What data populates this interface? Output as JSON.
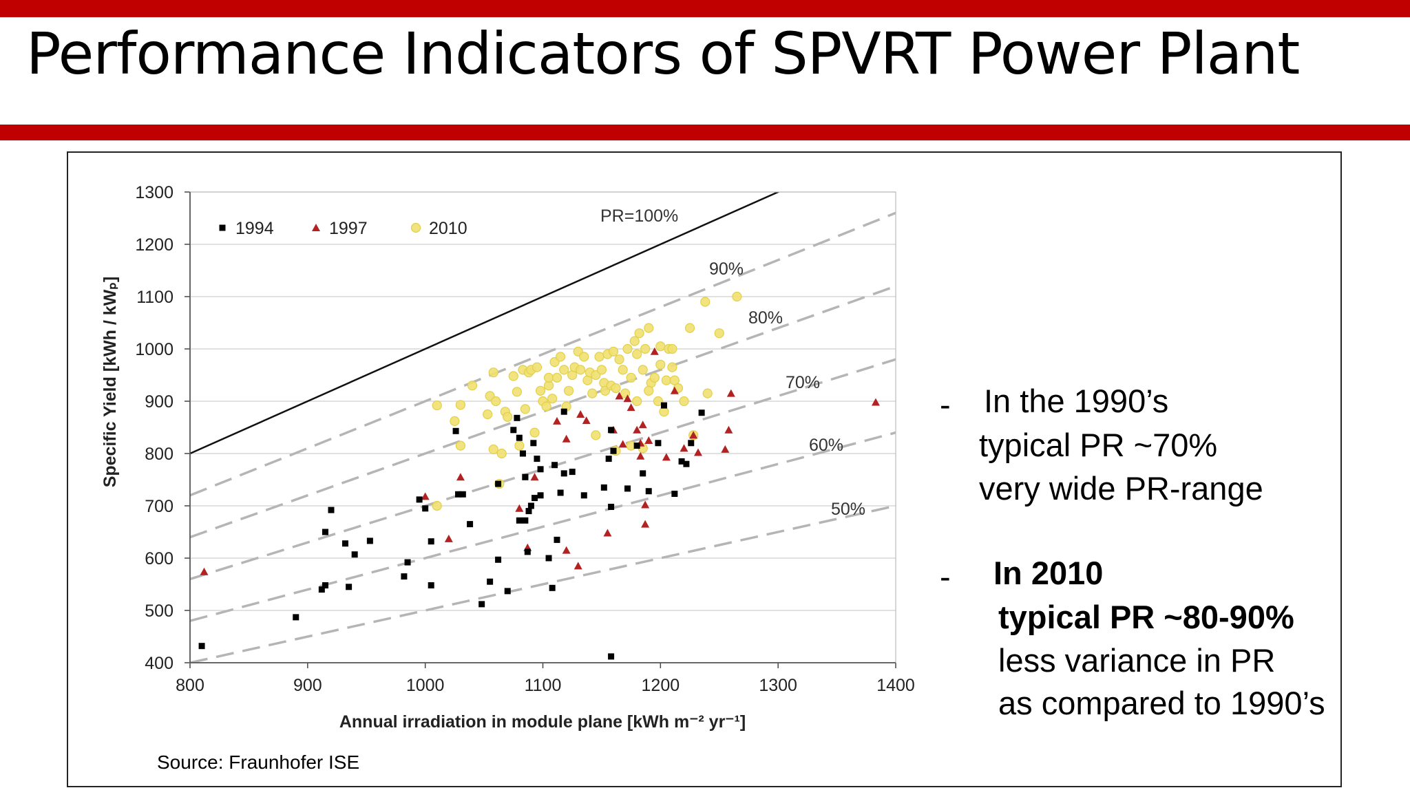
{
  "header": {
    "title": "Performance Indicators of SPVRT Power Plant"
  },
  "source": "Source: Fraunhofer ISE",
  "bullets": {
    "b1": {
      "dash": "-",
      "line1": "In the 1990’s",
      "line2": "typical PR ~70%",
      "line3": "very wide PR-range"
    },
    "b2": {
      "dash": "-",
      "line1": "In 2010",
      "line2": "typical PR ~80-90%",
      "line3": "less variance in PR",
      "line4": "as compared to 1990’s"
    }
  },
  "chart_data": {
    "type": "scatter",
    "xlabel": "Annual irradiation  in module plane [kWh m⁻² yr⁻¹]",
    "ylabel": "Specific Yield  [kWh / kWₚ]",
    "xlim": [
      800,
      1400
    ],
    "ylim": [
      400,
      1300
    ],
    "xticks": [
      "800",
      "900",
      "1000",
      "1100",
      "1200",
      "1300",
      "1400"
    ],
    "yticks": [
      "400",
      "500",
      "600",
      "700",
      "800",
      "900",
      "1000",
      "1100",
      "1200",
      "1300"
    ],
    "grid": "horizontal",
    "legend_position": "top-left",
    "reference_lines": [
      {
        "label": "PR=100%",
        "pr": 1.0,
        "style": "solid"
      },
      {
        "label": "90%",
        "pr": 0.9,
        "style": "dashed"
      },
      {
        "label": "80%",
        "pr": 0.8,
        "style": "dashed"
      },
      {
        "label": "70%",
        "pr": 0.7,
        "style": "dashed"
      },
      {
        "label": "60%",
        "pr": 0.6,
        "style": "dashed"
      },
      {
        "label": "50%",
        "pr": 0.5,
        "style": "dashed"
      }
    ],
    "series": [
      {
        "name": "1994",
        "marker": "square",
        "color": "#000000",
        "points": [
          [
            810,
            432
          ],
          [
            890,
            487
          ],
          [
            912,
            540
          ],
          [
            915,
            548
          ],
          [
            915,
            650
          ],
          [
            920,
            692
          ],
          [
            932,
            628
          ],
          [
            940,
            607
          ],
          [
            953,
            633
          ],
          [
            935,
            545
          ],
          [
            982,
            565
          ],
          [
            985,
            592
          ],
          [
            995,
            712
          ],
          [
            1000,
            695
          ],
          [
            1005,
            632
          ],
          [
            1005,
            548
          ],
          [
            1026,
            843
          ],
          [
            1028,
            722
          ],
          [
            1032,
            722
          ],
          [
            1038,
            665
          ],
          [
            1048,
            512
          ],
          [
            1055,
            555
          ],
          [
            1062,
            742
          ],
          [
            1070,
            537
          ],
          [
            1075,
            845
          ],
          [
            1078,
            868
          ],
          [
            1080,
            830
          ],
          [
            1083,
            800
          ],
          [
            1085,
            755
          ],
          [
            1080,
            672
          ],
          [
            1085,
            672
          ],
          [
            1087,
            612
          ],
          [
            1090,
            700
          ],
          [
            1092,
            820
          ],
          [
            1093,
            715
          ],
          [
            1095,
            790
          ],
          [
            1098,
            770
          ],
          [
            1098,
            720
          ],
          [
            1105,
            600
          ],
          [
            1108,
            543
          ],
          [
            1110,
            778
          ],
          [
            1112,
            635
          ],
          [
            1115,
            725
          ],
          [
            1118,
            880
          ],
          [
            1118,
            762
          ],
          [
            1125,
            765
          ],
          [
            1135,
            720
          ],
          [
            1152,
            735
          ],
          [
            1156,
            790
          ],
          [
            1158,
            845
          ],
          [
            1158,
            698
          ],
          [
            1158,
            412
          ],
          [
            1160,
            805
          ],
          [
            1172,
            733
          ],
          [
            1180,
            815
          ],
          [
            1190,
            728
          ],
          [
            1198,
            820
          ],
          [
            1203,
            892
          ],
          [
            1218,
            785
          ],
          [
            1222,
            780
          ],
          [
            1226,
            820
          ],
          [
            1235,
            878
          ],
          [
            1212,
            723
          ],
          [
            1185,
            762
          ],
          [
            1062,
            597
          ],
          [
            1088,
            690
          ],
          [
            1085,
            755
          ]
        ]
      },
      {
        "name": "1997",
        "marker": "triangle",
        "color": "#b22222",
        "points": [
          [
            812,
            574
          ],
          [
            1000,
            718
          ],
          [
            1020,
            637
          ],
          [
            1030,
            755
          ],
          [
            1080,
            695
          ],
          [
            1087,
            620
          ],
          [
            1093,
            755
          ],
          [
            1112,
            862
          ],
          [
            1120,
            828
          ],
          [
            1120,
            615
          ],
          [
            1130,
            585
          ],
          [
            1132,
            875
          ],
          [
            1137,
            863
          ],
          [
            1155,
            648
          ],
          [
            1160,
            845
          ],
          [
            1165,
            910
          ],
          [
            1172,
            905
          ],
          [
            1175,
            888
          ],
          [
            1180,
            845
          ],
          [
            1183,
            820
          ],
          [
            1183,
            795
          ],
          [
            1185,
            855
          ],
          [
            1187,
            702
          ],
          [
            1187,
            665
          ],
          [
            1190,
            825
          ],
          [
            1195,
            995
          ],
          [
            1205,
            793
          ],
          [
            1212,
            920
          ],
          [
            1220,
            810
          ],
          [
            1228,
            835
          ],
          [
            1232,
            802
          ],
          [
            1255,
            808
          ],
          [
            1258,
            845
          ],
          [
            1260,
            915
          ],
          [
            1383,
            898
          ],
          [
            1168,
            818
          ]
        ]
      },
      {
        "name": "2010",
        "marker": "circle",
        "color": "#f0e070",
        "points": [
          [
            1010,
            892
          ],
          [
            1010,
            700
          ],
          [
            1025,
            862
          ],
          [
            1030,
            893
          ],
          [
            1030,
            815
          ],
          [
            1040,
            930
          ],
          [
            1053,
            875
          ],
          [
            1055,
            910
          ],
          [
            1058,
            955
          ],
          [
            1058,
            808
          ],
          [
            1060,
            900
          ],
          [
            1063,
            742
          ],
          [
            1065,
            800
          ],
          [
            1068,
            880
          ],
          [
            1070,
            870
          ],
          [
            1075,
            948
          ],
          [
            1078,
            918
          ],
          [
            1080,
            815
          ],
          [
            1083,
            960
          ],
          [
            1085,
            885
          ],
          [
            1088,
            955
          ],
          [
            1090,
            960
          ],
          [
            1093,
            840
          ],
          [
            1095,
            965
          ],
          [
            1098,
            920
          ],
          [
            1100,
            900
          ],
          [
            1103,
            890
          ],
          [
            1105,
            930
          ],
          [
            1105,
            945
          ],
          [
            1108,
            905
          ],
          [
            1110,
            975
          ],
          [
            1112,
            945
          ],
          [
            1115,
            985
          ],
          [
            1118,
            960
          ],
          [
            1120,
            890
          ],
          [
            1122,
            920
          ],
          [
            1125,
            950
          ],
          [
            1127,
            965
          ],
          [
            1130,
            995
          ],
          [
            1132,
            960
          ],
          [
            1135,
            985
          ],
          [
            1138,
            940
          ],
          [
            1140,
            955
          ],
          [
            1142,
            915
          ],
          [
            1145,
            950
          ],
          [
            1148,
            985
          ],
          [
            1150,
            960
          ],
          [
            1152,
            935
          ],
          [
            1153,
            920
          ],
          [
            1155,
            990
          ],
          [
            1158,
            930
          ],
          [
            1160,
            995
          ],
          [
            1162,
            925
          ],
          [
            1165,
            980
          ],
          [
            1168,
            960
          ],
          [
            1170,
            915
          ],
          [
            1172,
            1000
          ],
          [
            1175,
            945
          ],
          [
            1178,
            1015
          ],
          [
            1180,
            990
          ],
          [
            1182,
            1030
          ],
          [
            1185,
            960
          ],
          [
            1187,
            1000
          ],
          [
            1190,
            1040
          ],
          [
            1192,
            935
          ],
          [
            1195,
            945
          ],
          [
            1198,
            900
          ],
          [
            1200,
            1005
          ],
          [
            1200,
            970
          ],
          [
            1203,
            880
          ],
          [
            1205,
            940
          ],
          [
            1207,
            1000
          ],
          [
            1210,
            965
          ],
          [
            1212,
            940
          ],
          [
            1215,
            925
          ],
          [
            1220,
            900
          ],
          [
            1225,
            1040
          ],
          [
            1228,
            835
          ],
          [
            1238,
            1090
          ],
          [
            1240,
            915
          ],
          [
            1250,
            1030
          ],
          [
            1265,
            1100
          ],
          [
            1185,
            810
          ],
          [
            1175,
            815
          ],
          [
            1162,
            805
          ],
          [
            1145,
            835
          ],
          [
            1180,
            900
          ],
          [
            1190,
            920
          ],
          [
            1210,
            1000
          ]
        ]
      }
    ]
  }
}
